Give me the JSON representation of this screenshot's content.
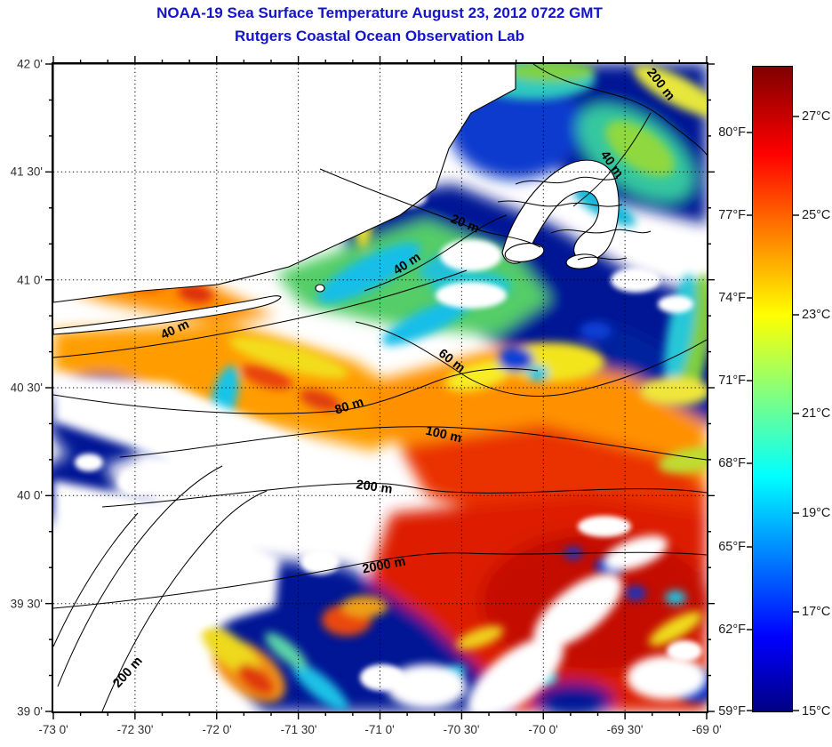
{
  "title": {
    "line1": "NOAA-19 Sea Surface Temperature August 23, 2012 0722 GMT",
    "line2": "Rutgers Coastal Ocean Observation Lab",
    "color": "#1414CC"
  },
  "map": {
    "lat_axis": {
      "labels": [
        "42 0'",
        "41 30'",
        "41 0'",
        "40 30'",
        "40 0'",
        "39 30'",
        "39 0'"
      ]
    },
    "lon_axis": {
      "labels": [
        "-73 0'",
        "-72 30'",
        "-72 0'",
        "-71 30'",
        "-71 0'",
        "-70 30'",
        "-70 0'",
        "-69 30'",
        "-69 0'"
      ]
    },
    "grid_style": "dotted 30-minute graticule",
    "depth_contour_labels": [
      "200 m",
      "40 m",
      "20 m",
      "40 m",
      "40 m",
      "60 m",
      "80 m",
      "100 m",
      "200 m",
      "2000 m",
      "200 m"
    ]
  },
  "colorbar": {
    "celsius_labels": [
      "27°C",
      "25°C",
      "23°C",
      "21°C",
      "19°C",
      "17°C",
      "15°C"
    ],
    "fahrenheit_labels": [
      "80°F",
      "77°F",
      "74°F",
      "71°F",
      "68°F",
      "65°F",
      "62°F",
      "59°F"
    ],
    "range_celsius": [
      15,
      28
    ],
    "colormap": "jet",
    "top_color": "#7F0000",
    "bottom_color": "#000083"
  }
}
